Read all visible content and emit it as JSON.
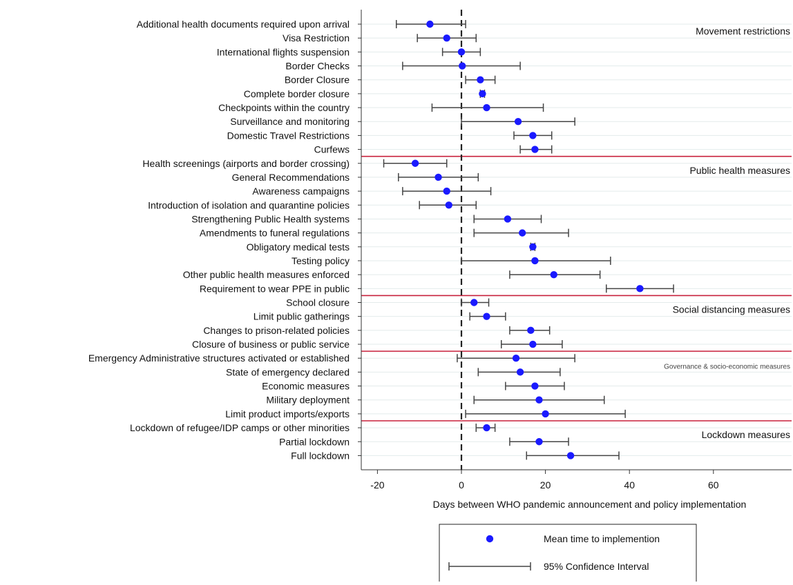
{
  "chart_data": {
    "type": "scatter",
    "subtype": "dot-and-whisker (forest plot)",
    "orientation": "horizontal",
    "xlabel": "Days between WHO pandemic announcement and policy implementation",
    "ylabel": "",
    "xlim": [
      -25,
      78
    ],
    "xticks": [
      -20,
      0,
      20,
      40,
      60
    ],
    "xtick_labels": [
      "-20",
      "0",
      "20",
      "40",
      "60"
    ],
    "reference_line": {
      "x": 0,
      "style": "dashed"
    },
    "grid": "light horizontal gridlines",
    "colors": {
      "mean_marker": "#1a1aff",
      "interval": "#444444",
      "group_separator": "#c8203c",
      "gridline": "#e3ebeb"
    },
    "groups": [
      {
        "label": "Movement restrictions",
        "label_size": "normal",
        "items": [
          {
            "category": "Additional health documents required upon arrival",
            "mean": -7.5,
            "ci": [
              -15.5,
              1
            ]
          },
          {
            "category": "Visa Restriction",
            "mean": -3.5,
            "ci": [
              -10.5,
              3.5
            ]
          },
          {
            "category": "International flights suspension",
            "mean": 0,
            "ci": [
              -4.5,
              4.5
            ]
          },
          {
            "category": "Border Checks",
            "mean": 0.2,
            "ci": [
              -14,
              14
            ]
          },
          {
            "category": "Border Closure",
            "mean": 4.5,
            "ci": [
              1,
              8
            ]
          },
          {
            "category": "Complete border closure",
            "mean": 5,
            "ci": [
              4.5,
              5.5
            ]
          },
          {
            "category": "Checkpoints within the country",
            "mean": 6,
            "ci": [
              -7,
              19.5
            ]
          },
          {
            "category": "Surveillance and monitoring",
            "mean": 13.5,
            "ci": [
              0,
              27
            ]
          },
          {
            "category": "Domestic Travel Restrictions",
            "mean": 17,
            "ci": [
              12.5,
              21.5
            ]
          },
          {
            "category": "Curfews",
            "mean": 17.5,
            "ci": [
              14,
              21.5
            ]
          }
        ]
      },
      {
        "label": "Public health measures",
        "label_size": "normal",
        "items": [
          {
            "category": "Health screenings (airports and border crossing)",
            "mean": -11,
            "ci": [
              -18.5,
              -3.5
            ]
          },
          {
            "category": "General Recommendations",
            "mean": -5.5,
            "ci": [
              -15,
              4
            ]
          },
          {
            "category": "Awareness campaigns",
            "mean": -3.5,
            "ci": [
              -14,
              7
            ]
          },
          {
            "category": "Introduction of isolation and quarantine policies",
            "mean": -3,
            "ci": [
              -10,
              3.5
            ]
          },
          {
            "category": "Strengthening Public Health systems",
            "mean": 11,
            "ci": [
              3,
              19
            ]
          },
          {
            "category": "Amendments to funeral regulations",
            "mean": 14.5,
            "ci": [
              3,
              25.5
            ]
          },
          {
            "category": "Obligatory medical tests",
            "mean": 17,
            "ci": [
              16.5,
              17.5
            ]
          },
          {
            "category": "Testing policy",
            "mean": 17.5,
            "ci": [
              0,
              35.5
            ]
          },
          {
            "category": "Other public health measures enforced",
            "mean": 22,
            "ci": [
              11.5,
              33
            ]
          },
          {
            "category": "Requirement to wear PPE in public",
            "mean": 42.5,
            "ci": [
              34.5,
              50.5
            ]
          }
        ]
      },
      {
        "label": "Social distancing measures",
        "label_size": "normal",
        "items": [
          {
            "category": "School closure",
            "mean": 3,
            "ci": [
              0,
              6.5
            ]
          },
          {
            "category": "Limit public gatherings",
            "mean": 6,
            "ci": [
              2,
              10.5
            ]
          },
          {
            "category": "Changes to prison-related policies",
            "mean": 16.5,
            "ci": [
              11.5,
              21
            ]
          },
          {
            "category": "Closure of business or public service",
            "mean": 17,
            "ci": [
              9.5,
              24
            ]
          }
        ]
      },
      {
        "label": "Governance & socio-economic measures",
        "label_size": "small",
        "items": [
          {
            "category": "Emergency Administrative structures activated or established",
            "mean": 13,
            "ci": [
              -1,
              27
            ]
          },
          {
            "category": "State of emergency declared",
            "mean": 14,
            "ci": [
              4,
              23.5
            ]
          },
          {
            "category": "Economic measures",
            "mean": 17.5,
            "ci": [
              10.5,
              24.5
            ]
          },
          {
            "category": "Military deployment",
            "mean": 18.5,
            "ci": [
              3,
              34
            ]
          },
          {
            "category": "Limit product imports/exports",
            "mean": 20,
            "ci": [
              1,
              39
            ]
          }
        ]
      },
      {
        "label": "Lockdown measures",
        "label_size": "normal",
        "items": [
          {
            "category": "Lockdown of refugee/IDP camps or other minorities",
            "mean": 6,
            "ci": [
              3.5,
              8
            ]
          },
          {
            "category": "Partial lockdown",
            "mean": 18.5,
            "ci": [
              11.5,
              25.5
            ]
          },
          {
            "category": "Full lockdown",
            "mean": 26,
            "ci": [
              15.5,
              37.5
            ]
          }
        ]
      }
    ],
    "legend": {
      "placement": "bottom-center",
      "entries": [
        {
          "marker": "dot",
          "label": "Mean time to implemention"
        },
        {
          "marker": "interval",
          "label": "95% Confidence Interval"
        }
      ]
    }
  }
}
